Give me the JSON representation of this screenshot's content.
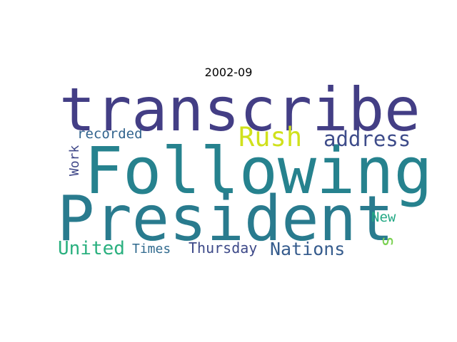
{
  "title": "2002-09",
  "word_cloud": {
    "words": [
      {
        "text": "transcribe",
        "color": "#433e85"
      },
      {
        "text": "Following",
        "color": "#26828e"
      },
      {
        "text": "President",
        "color": "#297b8e"
      },
      {
        "text": "Rush",
        "color": "#d0e11c"
      },
      {
        "text": "address",
        "color": "#3e4c8a"
      },
      {
        "text": "recorded",
        "color": "#32648e"
      },
      {
        "text": "United",
        "color": "#2ab07f"
      },
      {
        "text": "Nations",
        "color": "#365c8d"
      },
      {
        "text": "Thursday",
        "color": "#3e4a89"
      },
      {
        "text": "Times",
        "color": "#306a8e"
      },
      {
        "text": "New",
        "color": "#22a884"
      },
      {
        "text": "Work",
        "color": "#3f4788"
      },
      {
        "text": "s",
        "color": "#7ad151"
      }
    ]
  }
}
